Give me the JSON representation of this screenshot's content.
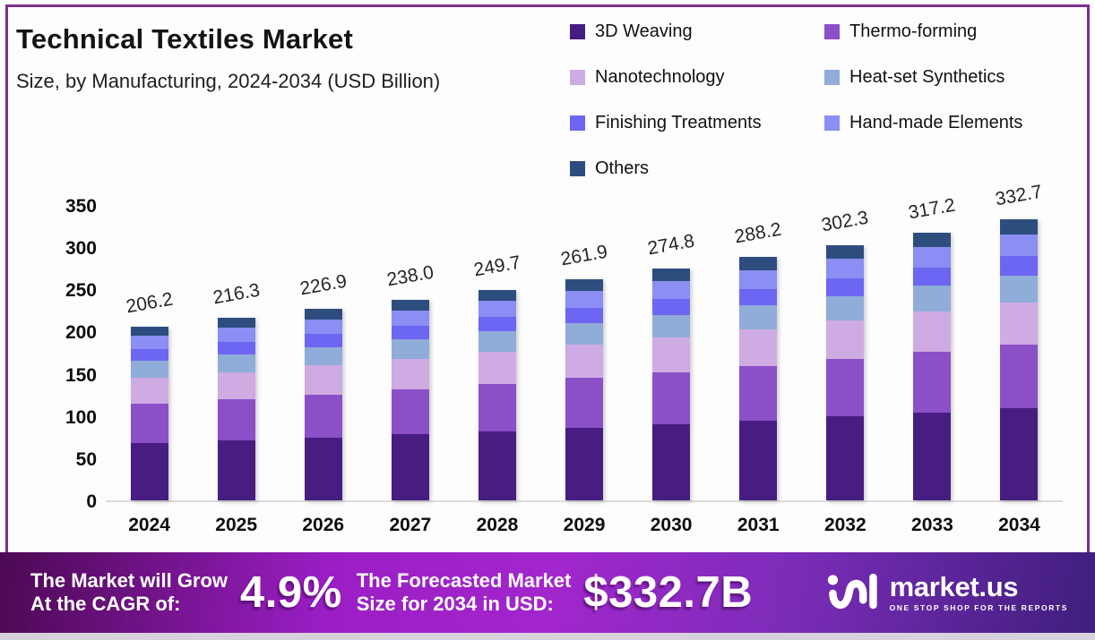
{
  "header": {
    "title": "Technical Textiles Market",
    "subtitle": "Size, by Manufacturing, 2024-2034 (USD Billion)"
  },
  "chart_data": {
    "type": "bar",
    "stacked": true,
    "title": "Technical Textiles Market Size, by Manufacturing, 2024-2034 (USD Billion)",
    "xlabel": "",
    "ylabel": "",
    "ylim": [
      0,
      350
    ],
    "yticks": [
      0,
      50,
      100,
      150,
      200,
      250,
      300,
      350
    ],
    "grid": false,
    "legend_position": "top-right",
    "categories": [
      "2024",
      "2025",
      "2026",
      "2027",
      "2028",
      "2029",
      "2030",
      "2031",
      "2032",
      "2033",
      "2034"
    ],
    "totals": [
      206.2,
      216.3,
      226.9,
      238.0,
      249.7,
      261.9,
      274.8,
      288.2,
      302.3,
      317.2,
      332.7
    ],
    "total_labels": [
      "206.2",
      "216.3",
      "226.9",
      "238.0",
      "249.7",
      "261.9",
      "274.8",
      "288.2",
      "302.3",
      "317.2",
      "332.7"
    ],
    "series": [
      {
        "name": "3D Weaving",
        "color": "#471d82",
        "values": [
          67.6,
          70.9,
          74.4,
          78.1,
          81.9,
          85.9,
          90.1,
          94.5,
          99.2,
          104.0,
          109.1
        ]
      },
      {
        "name": "Thermo-forming",
        "color": "#8b4fc7",
        "values": [
          46.6,
          48.9,
          51.3,
          53.8,
          56.4,
          59.2,
          62.1,
          65.1,
          68.3,
          71.7,
          75.2
        ]
      },
      {
        "name": "Nanotechnology",
        "color": "#cfabe3",
        "values": [
          30.9,
          32.4,
          34.0,
          35.7,
          37.5,
          39.3,
          41.2,
          43.2,
          45.3,
          47.6,
          49.9
        ]
      },
      {
        "name": "Heat-set Synthetics",
        "color": "#90acd9",
        "values": [
          20.0,
          21.0,
          22.0,
          23.1,
          24.2,
          25.4,
          26.7,
          28.0,
          29.3,
          30.8,
          32.3
        ]
      },
      {
        "name": "Finishing Treatments",
        "color": "#6d66f2",
        "values": [
          14.0,
          14.7,
          15.4,
          16.2,
          17.0,
          17.8,
          18.7,
          19.6,
          20.6,
          21.6,
          22.6
        ]
      },
      {
        "name": "Hand-made Elements",
        "color": "#8b8ef2",
        "values": [
          15.9,
          16.7,
          17.5,
          18.3,
          19.2,
          20.2,
          21.2,
          22.2,
          23.3,
          24.4,
          25.6
        ]
      },
      {
        "name": "Others",
        "color": "#2d4d7e",
        "values": [
          11.1,
          11.7,
          12.3,
          12.9,
          13.5,
          14.1,
          14.8,
          15.6,
          16.3,
          17.1,
          18.0
        ]
      }
    ]
  },
  "banner": {
    "cagr_label_line1": "The Market will Grow",
    "cagr_label_line2": "At the CAGR of:",
    "cagr_value": "4.9%",
    "forecast_label_line1": "The Forecasted Market",
    "forecast_label_line2": "Size for 2034 in USD:",
    "forecast_value": "$332.7B",
    "brand_name": "market.us",
    "brand_tagline": "ONE STOP SHOP FOR THE REPORTS"
  },
  "colors": {
    "page_border": "#7b2f8f",
    "axis_line": "#dcdcdc",
    "banner_gradient_stops": [
      "#4c0953 0%",
      "#9a1ec4 30%",
      "#a326cd 50%",
      "#7b2cb8 72%",
      "#3f1e7d 100%"
    ]
  }
}
